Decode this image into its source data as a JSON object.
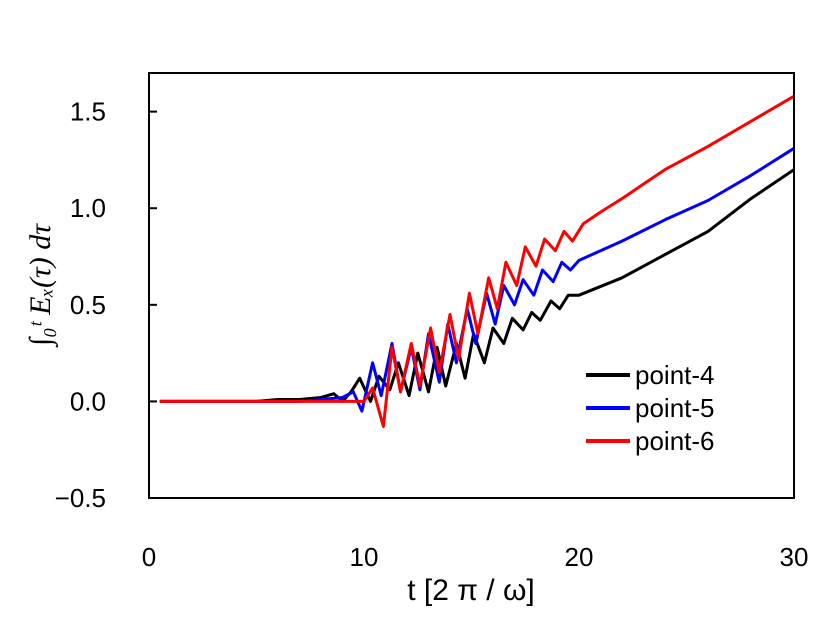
{
  "chart_data": {
    "type": "line",
    "xlabel": "t [2 π / ω]",
    "ylabel": "∫₀ᵗ Eₓ(τ) dτ",
    "xlim": [
      0,
      30
    ],
    "ylim": [
      -0.5,
      1.7
    ],
    "x_ticks": [
      "0",
      "10",
      "20",
      "30"
    ],
    "y_ticks": [
      "−0.5",
      "0.0",
      "0.5",
      "1.0",
      "1.5"
    ],
    "x_tick_values": [
      0,
      10,
      20,
      30
    ],
    "y_tick_values": [
      -0.5,
      0.0,
      0.5,
      1.0,
      1.5
    ],
    "grid": false,
    "legend_position": "bottom-right",
    "series": [
      {
        "name": "point-4",
        "color": "#000000",
        "points": [
          [
            0.5,
            0
          ],
          [
            5,
            0
          ],
          [
            6,
            0.01
          ],
          [
            7,
            0.01
          ],
          [
            8,
            0.02
          ],
          [
            8.6,
            0.04
          ],
          [
            9.0,
            0.0
          ],
          [
            9.4,
            0.05
          ],
          [
            9.8,
            0.12
          ],
          [
            10.3,
            0.0
          ],
          [
            10.7,
            0.13
          ],
          [
            11.2,
            0.06
          ],
          [
            11.6,
            0.2
          ],
          [
            12.1,
            0.03
          ],
          [
            12.5,
            0.25
          ],
          [
            13.0,
            0.05
          ],
          [
            13.4,
            0.28
          ],
          [
            13.8,
            0.08
          ],
          [
            14.3,
            0.3
          ],
          [
            14.7,
            0.12
          ],
          [
            15.1,
            0.35
          ],
          [
            15.6,
            0.2
          ],
          [
            16.0,
            0.38
          ],
          [
            16.5,
            0.3
          ],
          [
            16.9,
            0.43
          ],
          [
            17.4,
            0.37
          ],
          [
            17.8,
            0.46
          ],
          [
            18.2,
            0.42
          ],
          [
            18.7,
            0.52
          ],
          [
            19.1,
            0.48
          ],
          [
            19.5,
            0.55
          ],
          [
            20,
            0.55
          ],
          [
            22,
            0.64
          ],
          [
            24,
            0.76
          ],
          [
            26,
            0.88
          ],
          [
            28,
            1.05
          ],
          [
            30,
            1.2
          ]
        ]
      },
      {
        "name": "point-5",
        "color": "#0000ff",
        "points": [
          [
            0.5,
            0
          ],
          [
            6,
            0
          ],
          [
            7,
            0.0
          ],
          [
            8,
            0.01
          ],
          [
            9,
            0.02
          ],
          [
            9.5,
            0.05
          ],
          [
            9.9,
            -0.05
          ],
          [
            10.4,
            0.2
          ],
          [
            10.8,
            0.03
          ],
          [
            11.3,
            0.3
          ],
          [
            11.7,
            0.05
          ],
          [
            12.2,
            0.28
          ],
          [
            12.6,
            0.06
          ],
          [
            13.0,
            0.35
          ],
          [
            13.5,
            0.1
          ],
          [
            13.9,
            0.4
          ],
          [
            14.3,
            0.2
          ],
          [
            14.8,
            0.48
          ],
          [
            15.2,
            0.3
          ],
          [
            15.7,
            0.56
          ],
          [
            16.1,
            0.4
          ],
          [
            16.5,
            0.6
          ],
          [
            17.0,
            0.5
          ],
          [
            17.4,
            0.63
          ],
          [
            17.9,
            0.55
          ],
          [
            18.3,
            0.68
          ],
          [
            18.8,
            0.62
          ],
          [
            19.2,
            0.72
          ],
          [
            19.6,
            0.68
          ],
          [
            20,
            0.73
          ],
          [
            22,
            0.83
          ],
          [
            24,
            0.94
          ],
          [
            26,
            1.04
          ],
          [
            28,
            1.17
          ],
          [
            30,
            1.31
          ]
        ]
      },
      {
        "name": "point-6",
        "color": "#ff0000",
        "points": [
          [
            0.5,
            0
          ],
          [
            7,
            0
          ],
          [
            8,
            0
          ],
          [
            9,
            0
          ],
          [
            10,
            0.0
          ],
          [
            10.4,
            0.07
          ],
          [
            10.9,
            -0.13
          ],
          [
            11.3,
            0.28
          ],
          [
            11.7,
            0.05
          ],
          [
            12.2,
            0.3
          ],
          [
            12.6,
            0.08
          ],
          [
            13.1,
            0.38
          ],
          [
            13.5,
            0.15
          ],
          [
            14.0,
            0.45
          ],
          [
            14.4,
            0.22
          ],
          [
            14.9,
            0.56
          ],
          [
            15.3,
            0.35
          ],
          [
            15.8,
            0.64
          ],
          [
            16.2,
            0.48
          ],
          [
            16.6,
            0.72
          ],
          [
            17.1,
            0.6
          ],
          [
            17.5,
            0.8
          ],
          [
            18.0,
            0.7
          ],
          [
            18.4,
            0.84
          ],
          [
            18.9,
            0.78
          ],
          [
            19.3,
            0.88
          ],
          [
            19.7,
            0.83
          ],
          [
            20.2,
            0.92
          ],
          [
            21,
            0.98
          ],
          [
            22,
            1.05
          ],
          [
            24,
            1.2
          ],
          [
            26,
            1.32
          ],
          [
            28,
            1.45
          ],
          [
            30,
            1.58
          ]
        ]
      }
    ]
  }
}
